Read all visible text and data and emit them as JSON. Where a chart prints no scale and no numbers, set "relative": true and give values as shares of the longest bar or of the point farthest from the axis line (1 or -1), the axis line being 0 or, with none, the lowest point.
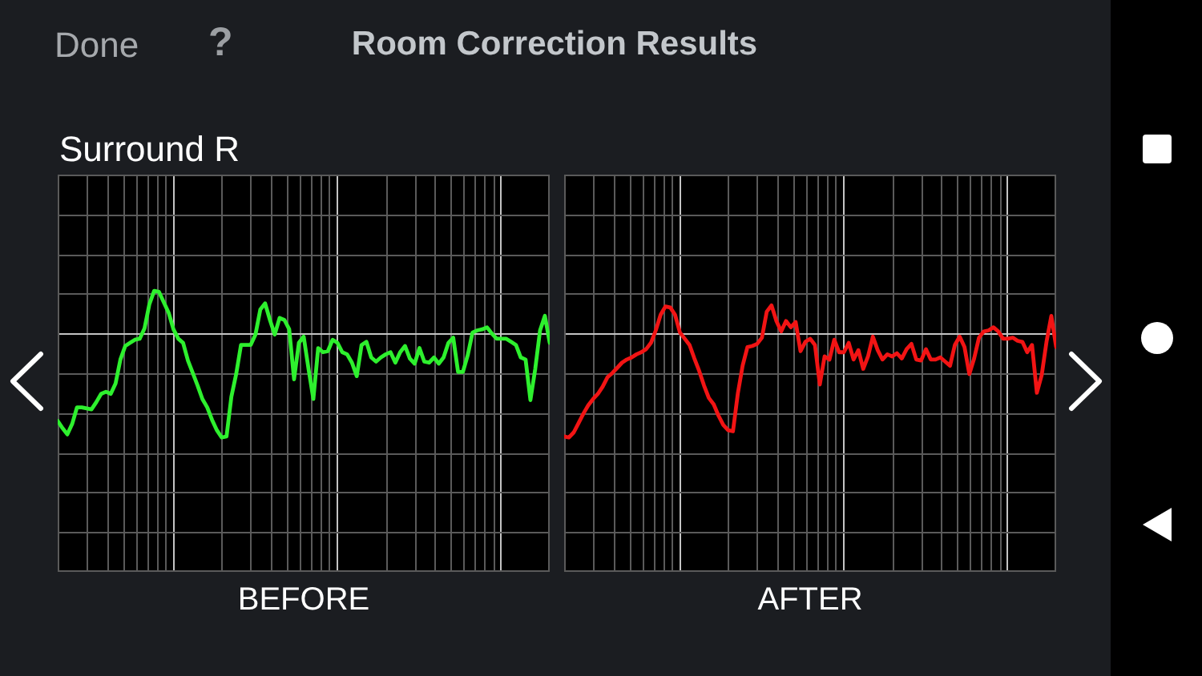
{
  "chart_data": [
    {
      "type": "line",
      "title": "Room Correction Results",
      "subtitle": "Surround R",
      "annotations": [
        "Done",
        "?"
      ],
      "xlabel": "BEFORE",
      "relative": true,
      "grid": true,
      "categories": [
        null,
        null,
        null,
        null,
        null,
        null,
        null,
        null,
        null,
        null,
        null,
        null,
        null,
        null,
        null,
        null,
        null,
        null,
        null,
        null,
        null,
        null,
        null,
        null,
        null,
        null,
        null,
        null,
        null,
        null,
        null,
        null,
        null,
        null,
        null,
        null,
        null,
        null,
        null,
        null,
        null,
        null,
        null,
        null,
        null,
        null,
        null,
        null,
        null,
        null,
        null,
        null,
        null,
        null,
        null,
        null,
        null,
        null,
        null,
        null,
        null,
        null,
        null,
        null,
        null,
        null,
        null,
        null,
        null,
        null,
        null,
        null,
        null,
        null,
        null,
        null,
        null,
        null,
        null,
        null,
        null,
        null,
        null,
        null,
        null,
        null,
        null,
        null,
        null,
        null,
        null,
        null,
        null,
        null,
        null,
        null,
        null,
        null,
        null,
        null,
        null,
        null,
        null
      ],
      "series": [
        {
          "color": "#2ef02e",
          "values": [
            -0.84,
            -0.91,
            -0.97,
            -0.87,
            -0.71,
            -0.71,
            -0.72,
            -0.73,
            -0.66,
            -0.58,
            -0.56,
            -0.58,
            -0.48,
            -0.25,
            -0.12,
            -0.09,
            -0.06,
            -0.05,
            0.05,
            0.28,
            0.41,
            0.4,
            0.3,
            0.2,
            0.04,
            -0.05,
            -0.09,
            -0.26,
            -0.38,
            -0.5,
            -0.63,
            -0.71,
            -0.83,
            -0.93,
            -1,
            -0.99,
            -0.61,
            -0.39,
            -0.11,
            -0.11,
            -0.11,
            -0.01,
            0.23,
            0.29,
            0.13,
            -0.01,
            0.15,
            0.13,
            0.04,
            -0.44,
            -0.09,
            -0.03,
            -0.34,
            -0.63,
            -0.14,
            -0.18,
            -0.17,
            -0.06,
            -0.09,
            -0.18,
            -0.2,
            -0.28,
            -0.41,
            -0.11,
            -0.08,
            -0.23,
            -0.27,
            -0.23,
            -0.2,
            -0.18,
            -0.28,
            -0.18,
            -0.12,
            -0.24,
            -0.29,
            -0.14,
            -0.27,
            -0.28,
            -0.23,
            -0.29,
            -0.23,
            -0.09,
            -0.04,
            -0.37,
            -0.37,
            -0.21,
            0.01,
            0.03,
            0.04,
            0.06,
            0.0,
            -0.05,
            -0.05,
            -0.05,
            -0.08,
            -0.11,
            -0.23,
            -0.25,
            -0.64,
            -0.34,
            0.03,
            0.17,
            -0.09
          ]
        }
      ]
    },
    {
      "type": "line",
      "xlabel": "AFTER",
      "relative": true,
      "grid": true,
      "categories": [
        null,
        null,
        null,
        null,
        null,
        null,
        null,
        null,
        null,
        null,
        null,
        null,
        null,
        null,
        null,
        null,
        null,
        null,
        null,
        null,
        null,
        null,
        null,
        null,
        null,
        null,
        null,
        null,
        null,
        null,
        null,
        null,
        null,
        null,
        null,
        null,
        null,
        null,
        null,
        null,
        null,
        null,
        null,
        null,
        null,
        null,
        null,
        null,
        null,
        null,
        null,
        null,
        null,
        null,
        null,
        null,
        null,
        null,
        null,
        null,
        null,
        null,
        null,
        null,
        null,
        null,
        null,
        null,
        null,
        null,
        null,
        null,
        null,
        null,
        null,
        null,
        null,
        null,
        null,
        null,
        null,
        null,
        null,
        null,
        null,
        null,
        null,
        null,
        null,
        null,
        null,
        null,
        null,
        null,
        null,
        null,
        null,
        null,
        null,
        null,
        null,
        null,
        null
      ],
      "series": [
        {
          "color": "#f21414",
          "values": [
            -0.99,
            -1,
            -0.95,
            -0.86,
            -0.77,
            -0.69,
            -0.63,
            -0.58,
            -0.51,
            -0.42,
            -0.38,
            -0.33,
            -0.28,
            -0.25,
            -0.23,
            -0.2,
            -0.18,
            -0.15,
            -0.09,
            0.03,
            0.18,
            0.26,
            0.25,
            0.18,
            0.01,
            -0.05,
            -0.11,
            -0.24,
            -0.36,
            -0.5,
            -0.62,
            -0.68,
            -0.79,
            -0.88,
            -0.93,
            -0.94,
            -0.58,
            -0.31,
            -0.13,
            -0.12,
            -0.1,
            -0.04,
            0.21,
            0.27,
            0.12,
            0.02,
            0.12,
            0.06,
            0.11,
            -0.17,
            -0.08,
            -0.05,
            -0.11,
            -0.49,
            -0.22,
            -0.25,
            -0.06,
            -0.18,
            -0.18,
            -0.09,
            -0.25,
            -0.16,
            -0.34,
            -0.22,
            -0.03,
            -0.16,
            -0.25,
            -0.2,
            -0.22,
            -0.19,
            -0.24,
            -0.15,
            -0.1,
            -0.25,
            -0.26,
            -0.15,
            -0.25,
            -0.25,
            -0.23,
            -0.27,
            -0.31,
            -0.11,
            -0.03,
            -0.13,
            -0.39,
            -0.24,
            -0.04,
            0.02,
            0.03,
            0.06,
            0.02,
            -0.05,
            -0.05,
            -0.04,
            -0.07,
            -0.08,
            -0.18,
            -0.11,
            -0.57,
            -0.4,
            -0.08,
            0.17,
            -0.13
          ]
        }
      ]
    }
  ]
}
